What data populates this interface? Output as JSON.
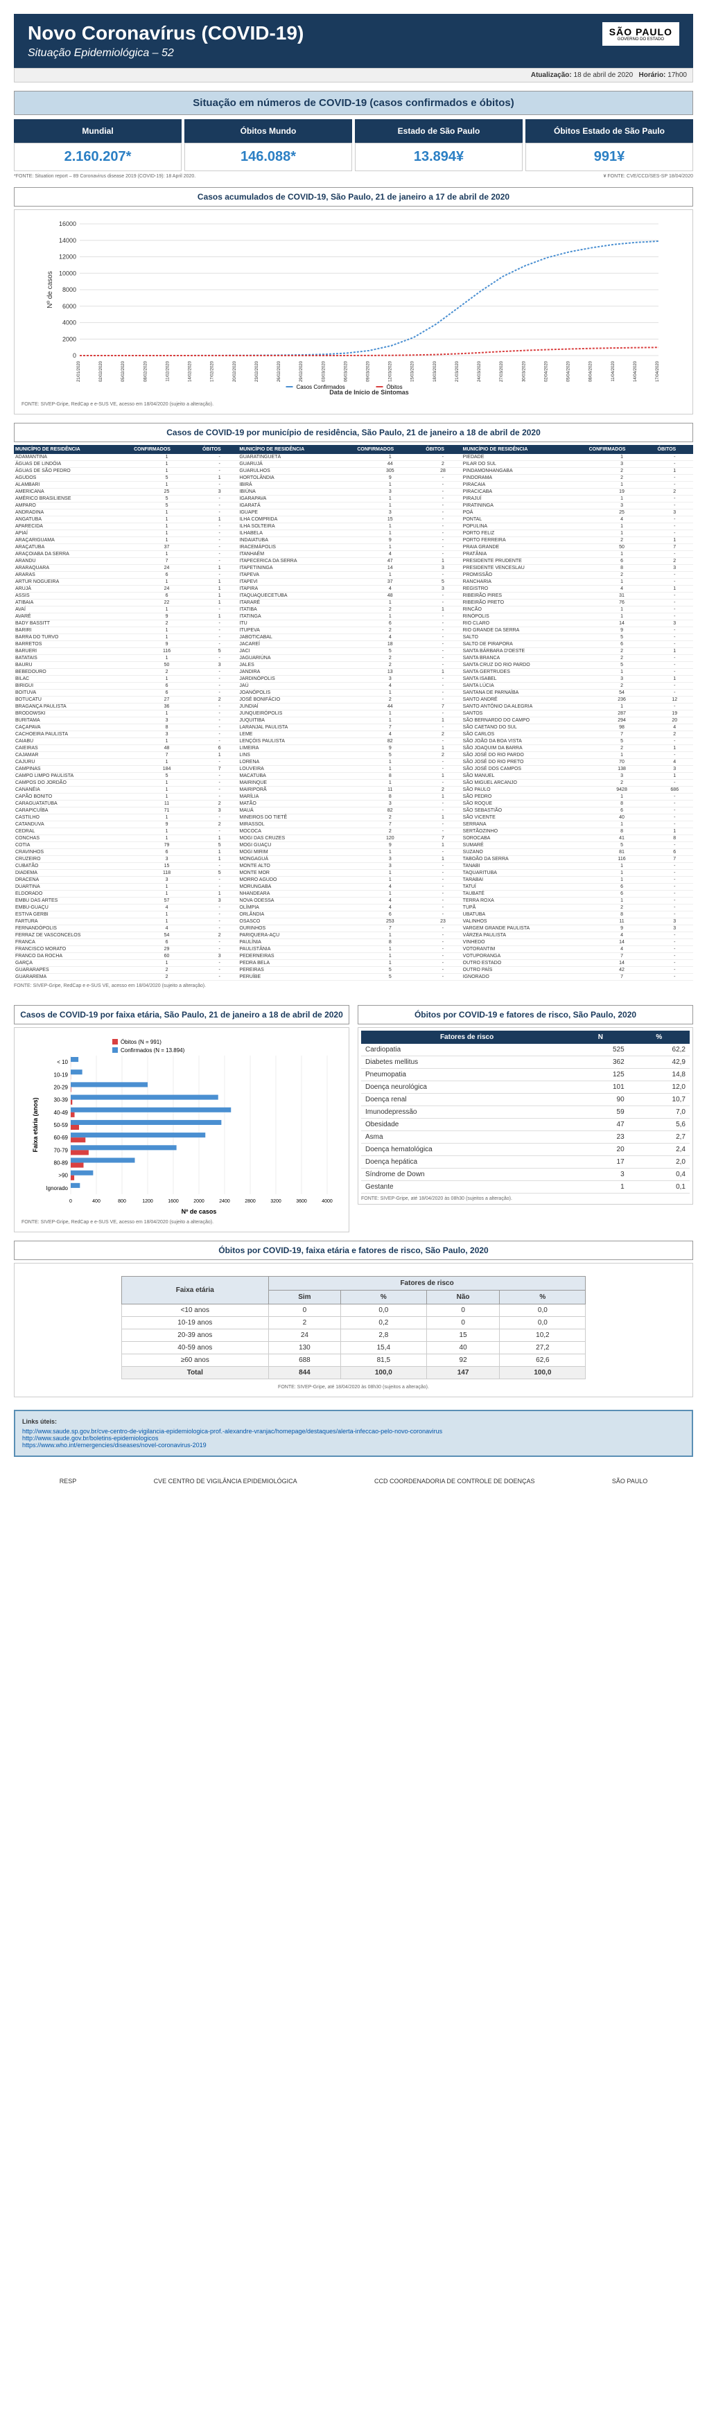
{
  "header": {
    "title": "Novo Coronavírus (COVID-19)",
    "subtitle": "Situação Epidemiológica – 52",
    "sp_label": "SÃO PAULO",
    "sp_sub": "GOVERNO DO ESTADO"
  },
  "update": {
    "label_date": "Atualização:",
    "date": "18 de abril de 2020",
    "label_time": "Horário:",
    "time": "17h00"
  },
  "situation_title": "Situação em números de COVID-19 (casos confirmados e óbitos)",
  "stats": [
    {
      "label": "Mundial",
      "value": "2.160.207*"
    },
    {
      "label": "Óbitos Mundo",
      "value": "146.088*"
    },
    {
      "label": "Estado de São Paulo",
      "value": "13.894¥"
    },
    {
      "label": "Óbitos Estado de São Paulo",
      "value": "991¥"
    }
  ],
  "footnote_left": "*FONTE: Situation report – 89 Coronavirus disease 2019 (COVID-19): 18 April 2020.",
  "footnote_right": "¥ FONTE: CVE/CCD/SES-SP 18/04/2020",
  "chart1": {
    "title": "Casos acumulados de COVID-19, São Paulo, 21 de janeiro a 17 de abril de 2020",
    "y_label": "Nº de casos",
    "x_label": "Data de Início de Sintomas",
    "legend": [
      "Casos Confirmados",
      "Óbitos"
    ],
    "colors": {
      "cases": "#4a8fd1",
      "deaths": "#d94040",
      "grid": "#e0e0e0",
      "axis": "#666"
    },
    "y_max": 16000,
    "y_step": 2000,
    "x_dates": [
      "21/01/2020",
      "02/02/2020",
      "05/02/2020",
      "08/02/2020",
      "11/02/2020",
      "14/02/2020",
      "17/02/2020",
      "20/02/2020",
      "23/02/2020",
      "26/02/2020",
      "29/02/2020",
      "03/03/2020",
      "06/03/2020",
      "09/03/2020",
      "12/03/2020",
      "15/03/2020",
      "18/03/2020",
      "21/03/2020",
      "24/03/2020",
      "27/03/2020",
      "30/03/2020",
      "02/04/2020",
      "05/04/2020",
      "08/04/2020",
      "11/04/2020",
      "14/04/2020",
      "17/04/2020"
    ],
    "cases": [
      0,
      0,
      0,
      0,
      0,
      5,
      10,
      20,
      30,
      50,
      80,
      150,
      300,
      600,
      1200,
      2200,
      3800,
      5800,
      7800,
      9600,
      10900,
      11900,
      12600,
      13100,
      13500,
      13750,
      13894
    ],
    "deaths": [
      0,
      0,
      0,
      0,
      0,
      0,
      0,
      0,
      0,
      0,
      0,
      2,
      5,
      10,
      25,
      60,
      120,
      220,
      350,
      500,
      620,
      720,
      800,
      870,
      920,
      960,
      991
    ],
    "footnote": "FONTE: SIVEP-Gripe, RedCap e e-SUS VE, acesso em 18/04/2020 (sujeito a alteração)."
  },
  "mun_table": {
    "title": "Casos de COVID-19 por município de residência, São Paulo, 21 de janeiro a 18 de abril de 2020",
    "headers": [
      "MUNICÍPIO DE RESIDÊNCIA",
      "CONFIRMADOS",
      "ÓBITOS"
    ],
    "rows": [
      [
        "ADAMANTINA",
        "1",
        "-",
        "GUARATINGUETÁ",
        "1",
        "-",
        "PIEDADE",
        "1",
        "-"
      ],
      [
        "ÁGUAS DE LINDÓIA",
        "1",
        "-",
        "GUARUJÁ",
        "44",
        "2",
        "PILAR DO SUL",
        "3",
        "-"
      ],
      [
        "ÁGUAS DE SÃO PEDRO",
        "1",
        "-",
        "GUARULHOS",
        "305",
        "28",
        "PINDAMONHANGABA",
        "2",
        "1"
      ],
      [
        "AGUDOS",
        "5",
        "1",
        "HORTOLÂNDIA",
        "9",
        "-",
        "PINDORAMA",
        "2",
        "-"
      ],
      [
        "ALAMBARI",
        "1",
        "-",
        "IBIRÁ",
        "1",
        "-",
        "PIRACAIA",
        "1",
        "-"
      ],
      [
        "AMERICANA",
        "25",
        "3",
        "IBIÚNA",
        "3",
        "-",
        "PIRACICABA",
        "19",
        "2"
      ],
      [
        "AMÉRICO BRASILIENSE",
        "5",
        "-",
        "IGARAPAVA",
        "1",
        "-",
        "PIRAJUÍ",
        "1",
        "-"
      ],
      [
        "AMPARO",
        "5",
        "-",
        "IGARATÁ",
        "1",
        "-",
        "PIRATININGA",
        "3",
        "-"
      ],
      [
        "ANDRADINA",
        "1",
        "-",
        "IGUAPE",
        "3",
        "-",
        "POÁ",
        "25",
        "3"
      ],
      [
        "ANGATUBA",
        "1",
        "1",
        "ILHA COMPRIDA",
        "15",
        "-",
        "PONTAL",
        "4",
        "-"
      ],
      [
        "APARECIDA",
        "1",
        "-",
        "ILHA SOLTEIRA",
        "1",
        "-",
        "POPULINA",
        "1",
        "-"
      ],
      [
        "APIAÍ",
        "1",
        "-",
        "ILHABELA",
        "1",
        "-",
        "PORTO FELIZ",
        "1",
        "-"
      ],
      [
        "ARAÇARIGUAMA",
        "1",
        "-",
        "INDAIATUBA",
        "9",
        "-",
        "PORTO FERREIRA",
        "2",
        "1"
      ],
      [
        "ARAÇATUBA",
        "37",
        "-",
        "IRACEMÁPOLIS",
        "1",
        "-",
        "PRAIA GRANDE",
        "50",
        "7"
      ],
      [
        "ARAÇOIABA DA SERRA",
        "1",
        "-",
        "ITANHAÉM",
        "4",
        "-",
        "PRATÂNIA",
        "1",
        "-"
      ],
      [
        "ARANDU",
        "7",
        "-",
        "ITAPECERICA DA SERRA",
        "47",
        "1",
        "PRESIDENTE PRUDENTE",
        "6",
        "2"
      ],
      [
        "ARARAQUARA",
        "24",
        "1",
        "ITAPETININGA",
        "14",
        "3",
        "PRESIDENTE VENCESLAU",
        "8",
        "3"
      ],
      [
        "ARARAS",
        "6",
        "-",
        "ITAPEVA",
        "1",
        "-",
        "PROMISSÃO",
        "2",
        "-"
      ],
      [
        "ARTUR NOGUEIRA",
        "1",
        "1",
        "ITAPEVI",
        "37",
        "5",
        "RANCHARIA",
        "1",
        "-"
      ],
      [
        "ARUJÁ",
        "24",
        "1",
        "ITAPIRA",
        "4",
        "3",
        "REGISTRO",
        "4",
        "1"
      ],
      [
        "ASSIS",
        "6",
        "1",
        "ITAQUAQUECETUBA",
        "48",
        "-",
        "RIBEIRÃO PIRES",
        "31",
        "-"
      ],
      [
        "ATIBAIA",
        "22",
        "1",
        "ITARARÉ",
        "1",
        "-",
        "RIBEIRÃO PRETO",
        "76",
        "-"
      ],
      [
        "AVAÍ",
        "1",
        "-",
        "ITATIBA",
        "2",
        "1",
        "RINCÃO",
        "1",
        "-"
      ],
      [
        "AVARÉ",
        "9",
        "1",
        "ITATINGA",
        "1",
        "-",
        "RINÓPOLIS",
        "1",
        "-"
      ],
      [
        "BADY BASSITT",
        "2",
        "-",
        "ITU",
        "6",
        "-",
        "RIO CLARO",
        "14",
        "3"
      ],
      [
        "BARIRI",
        "1",
        "-",
        "ITUPEVA",
        "2",
        "-",
        "RIO GRANDE DA SERRA",
        "9",
        "-"
      ],
      [
        "BARRA DO TURVO",
        "1",
        "-",
        "JABOTICABAL",
        "4",
        "-",
        "SALTO",
        "5",
        "-"
      ],
      [
        "BARRETOS",
        "9",
        "-",
        "JACAREÍ",
        "18",
        "-",
        "SALTO DE PIRAPORA",
        "6",
        "-"
      ],
      [
        "BARUERI",
        "116",
        "5",
        "JACI",
        "5",
        "-",
        "SANTA BÁRBARA D'OESTE",
        "2",
        "1"
      ],
      [
        "BATATAIS",
        "1",
        "-",
        "JAGUARIÚNA",
        "2",
        "-",
        "SANTA BRANCA",
        "2",
        "-"
      ],
      [
        "BAURU",
        "50",
        "3",
        "JALES",
        "2",
        "-",
        "SANTA CRUZ DO RIO PARDO",
        "5",
        "-"
      ],
      [
        "BEBEDOURO",
        "2",
        "-",
        "JANDIRA",
        "13",
        "1",
        "SANTA GERTRUDES",
        "1",
        "-"
      ],
      [
        "BILAC",
        "1",
        "-",
        "JARDINÓPOLIS",
        "3",
        "-",
        "SANTA ISABEL",
        "3",
        "1"
      ],
      [
        "BIRIGUI",
        "6",
        "-",
        "JAÚ",
        "4",
        "-",
        "SANTA LÚCIA",
        "2",
        "-"
      ],
      [
        "BOITUVA",
        "6",
        "-",
        "JOANÓPOLIS",
        "1",
        "-",
        "SANTANA DE PARNAÍBA",
        "54",
        "-"
      ],
      [
        "BOTUCATU",
        "27",
        "2",
        "JOSÉ BONIFÁCIO",
        "2",
        "-",
        "SANTO ANDRÉ",
        "236",
        "12"
      ],
      [
        "BRAGANÇA PAULISTA",
        "36",
        "-",
        "JUNDIAÍ",
        "44",
        "7",
        "SANTO ANTÔNIO DA ALEGRIA",
        "1",
        "-"
      ],
      [
        "BRODOWSKI",
        "1",
        "-",
        "JUNQUEIRÓPOLIS",
        "1",
        "-",
        "SANTOS",
        "287",
        "19"
      ],
      [
        "BURITAMA",
        "3",
        "-",
        "JUQUITIBA",
        "1",
        "1",
        "SÃO BERNARDO DO CAMPO",
        "294",
        "20"
      ],
      [
        "CAÇAPAVA",
        "8",
        "-",
        "LARANJAL PAULISTA",
        "7",
        "-",
        "SÃO CAETANO DO SUL",
        "98",
        "4"
      ],
      [
        "CACHOEIRA PAULISTA",
        "3",
        "-",
        "LEME",
        "4",
        "2",
        "SÃO CARLOS",
        "7",
        "2"
      ],
      [
        "CAIABU",
        "1",
        "-",
        "LENÇÓIS PAULISTA",
        "82",
        "-",
        "SÃO JOÃO DA BOA VISTA",
        "5",
        "-"
      ],
      [
        "CAIEIRAS",
        "48",
        "6",
        "LIMEIRA",
        "9",
        "1",
        "SÃO JOAQUIM DA BARRA",
        "2",
        "1"
      ],
      [
        "CAJAMAR",
        "7",
        "1",
        "LINS",
        "5",
        "2",
        "SÃO JOSÉ DO RIO PARDO",
        "1",
        "-"
      ],
      [
        "CAJURU",
        "1",
        "-",
        "LORENA",
        "1",
        "-",
        "SÃO JOSÉ DO RIO PRETO",
        "70",
        "4"
      ],
      [
        "CAMPINAS",
        "184",
        "7",
        "LOUVEIRA",
        "1",
        "-",
        "SÃO JOSÉ DOS CAMPOS",
        "138",
        "3"
      ],
      [
        "CAMPO LIMPO PAULISTA",
        "5",
        "-",
        "MACATUBA",
        "8",
        "1",
        "SÃO MANUEL",
        "3",
        "1"
      ],
      [
        "CAMPOS DO JORDÃO",
        "1",
        "-",
        "MAIRINQUE",
        "1",
        "-",
        "SÃO MIGUEL ARCANJO",
        "2",
        "-"
      ],
      [
        "CANANÉIA",
        "1",
        "-",
        "MAIRIPORÃ",
        "11",
        "2",
        "SÃO PAULO",
        "9428",
        "686"
      ],
      [
        "CAPÃO BONITO",
        "1",
        "-",
        "MARÍLIA",
        "8",
        "1",
        "SÃO PEDRO",
        "1",
        "-"
      ],
      [
        "CARAGUATATUBA",
        "11",
        "2",
        "MATÃO",
        "3",
        "-",
        "SÃO ROQUE",
        "8",
        "-"
      ],
      [
        "CARAPICUÍBA",
        "71",
        "3",
        "MAUÁ",
        "82",
        "-",
        "SÃO SEBASTIÃO",
        "6",
        "-"
      ],
      [
        "CASTILHO",
        "1",
        "-",
        "MINEIROS DO TIETÊ",
        "2",
        "1",
        "SÃO VICENTE",
        "40",
        "-"
      ],
      [
        "CATANDUVA",
        "9",
        "2",
        "MIRASSOL",
        "7",
        "-",
        "SERRANA",
        "1",
        "-"
      ],
      [
        "CEDRAL",
        "1",
        "-",
        "MOCOCA",
        "2",
        "-",
        "SERTÃOZINHO",
        "8",
        "1"
      ],
      [
        "CONCHAS",
        "1",
        "1",
        "MOGI DAS CRUZES",
        "120",
        "7",
        "SOROCABA",
        "41",
        "8"
      ],
      [
        "COTIA",
        "79",
        "5",
        "MOGI GUAÇU",
        "9",
        "1",
        "SUMARÉ",
        "5",
        "-"
      ],
      [
        "CRAVINHOS",
        "6",
        "1",
        "MOGI MIRIM",
        "1",
        "-",
        "SUZANO",
        "81",
        "6"
      ],
      [
        "CRUZEIRO",
        "3",
        "1",
        "MONGAGUÁ",
        "3",
        "1",
        "TABOÃO DA SERRA",
        "116",
        "7"
      ],
      [
        "CUBATÃO",
        "15",
        "-",
        "MONTE ALTO",
        "3",
        "-",
        "TANABI",
        "1",
        "-"
      ],
      [
        "DIADEMA",
        "118",
        "5",
        "MONTE MOR",
        "1",
        "-",
        "TAQUARITUBA",
        "1",
        "-"
      ],
      [
        "DRACENA",
        "3",
        "-",
        "MORRO AGUDO",
        "1",
        "-",
        "TARABAI",
        "1",
        "-"
      ],
      [
        "DUARTINA",
        "1",
        "-",
        "MORUNGABA",
        "4",
        "-",
        "TATUÍ",
        "6",
        "-"
      ],
      [
        "ELDORADO",
        "1",
        "1",
        "NHANDEARA",
        "1",
        "-",
        "TAUBATÉ",
        "6",
        "-"
      ],
      [
        "EMBU DAS ARTES",
        "57",
        "3",
        "NOVA ODESSA",
        "4",
        "-",
        "TERRA ROXA",
        "1",
        "-"
      ],
      [
        "EMBU-GUAÇU",
        "4",
        "-",
        "OLÍMPIA",
        "4",
        "-",
        "TUPÃ",
        "2",
        "-"
      ],
      [
        "ESTIVA GERBI",
        "1",
        "-",
        "ORLÂNDIA",
        "6",
        "-",
        "UBATUBA",
        "8",
        "-"
      ],
      [
        "FARTURA",
        "1",
        "-",
        "OSASCO",
        "253",
        "23",
        "VALINHOS",
        "11",
        "3"
      ],
      [
        "FERNANDÓPOLIS",
        "4",
        "-",
        "OURINHOS",
        "7",
        "-",
        "VARGEM GRANDE PAULISTA",
        "9",
        "3"
      ],
      [
        "FERRAZ DE VASCONCELOS",
        "54",
        "2",
        "PARIQUERA-AÇU",
        "1",
        "-",
        "VÁRZEA PAULISTA",
        "4",
        "-"
      ],
      [
        "FRANCA",
        "6",
        "-",
        "PAULÍNIA",
        "8",
        "-",
        "VINHEDO",
        "14",
        "-"
      ],
      [
        "FRANCISCO MORATO",
        "29",
        "-",
        "PAULISTÂNIA",
        "1",
        "-",
        "VOTORANTIM",
        "4",
        "-"
      ],
      [
        "FRANCO DA ROCHA",
        "60",
        "3",
        "PEDERNEIRAS",
        "1",
        "-",
        "VOTUPORANGA",
        "7",
        "-"
      ],
      [
        "GARÇA",
        "1",
        "-",
        "PEDRA BELA",
        "1",
        "-",
        "OUTRO ESTADO",
        "14",
        "-"
      ],
      [
        "GUARARAPES",
        "2",
        "-",
        "PEREIRAS",
        "5",
        "-",
        "OUTRO PAÍS",
        "42",
        "-"
      ],
      [
        "GUARAREMA",
        "2",
        "-",
        "PERUÍBE",
        "5",
        "-",
        "IGNORADO",
        "7",
        "-"
      ]
    ],
    "footnote": "FONTE: SIVEP-Gripe, RedCap e e-SUS VE, acesso em 18/04/2020 (sujeito a alteração)."
  },
  "age_chart": {
    "title": "Casos de COVID-19 por faixa etária, São Paulo, 21 de janeiro a 18 de abril de 2020",
    "y_label": "Faixa etária (anos)",
    "x_label": "Nº de casos",
    "legend_deaths": "Óbitos (N = 991)",
    "legend_cases": "Confirmados (N = 13.894)",
    "colors": {
      "cases": "#4a8fd1",
      "deaths": "#d94040"
    },
    "groups": [
      "< 10",
      "10-19",
      "20-29",
      "30-39",
      "40-49",
      "50-59",
      "60-69",
      "70-79",
      "80-89",
      ">90",
      "Ignorado"
    ],
    "cases": [
      120,
      180,
      1200,
      2300,
      2500,
      2350,
      2100,
      1650,
      1000,
      350,
      144
    ],
    "deaths": [
      1,
      2,
      8,
      25,
      60,
      130,
      230,
      280,
      200,
      55,
      0
    ],
    "x_max": 4000,
    "x_step": 400,
    "footnote": "FONTE: SIVEP-Gripe, RedCap e e-SUS VE, acesso em 18/04/2020 (sujeito a alteração)."
  },
  "risk_table": {
    "title": "Óbitos por COVID-19 e fatores de risco, São Paulo, 2020",
    "headers": [
      "Fatores de risco",
      "N",
      "%"
    ],
    "rows": [
      [
        "Cardiopatia",
        "525",
        "62,2"
      ],
      [
        "Diabetes mellitus",
        "362",
        "42,9"
      ],
      [
        "Pneumopatia",
        "125",
        "14,8"
      ],
      [
        "Doença neurológica",
        "101",
        "12,0"
      ],
      [
        "Doença renal",
        "90",
        "10,7"
      ],
      [
        "Imunodepressão",
        "59",
        "7,0"
      ],
      [
        "Obesidade",
        "47",
        "5,6"
      ],
      [
        "Asma",
        "23",
        "2,7"
      ],
      [
        "Doença hematológica",
        "20",
        "2,4"
      ],
      [
        "Doença hepática",
        "17",
        "2,0"
      ],
      [
        "Síndrome de Down",
        "3",
        "0,4"
      ],
      [
        "Gestante",
        "1",
        "0,1"
      ]
    ],
    "footnote": "FONTE: SIVEP-Gripe, até 18/04/2020 às 08h30 (sujeitos a alteração)."
  },
  "age_risk": {
    "title": "Óbitos por COVID-19, faixa etária e fatores de risco, São Paulo, 2020",
    "rows": [
      [
        "<10 anos",
        "0",
        "0,0",
        "0",
        "0,0"
      ],
      [
        "10-19 anos",
        "2",
        "0,2",
        "0",
        "0,0"
      ],
      [
        "20-39 anos",
        "24",
        "2,8",
        "15",
        "10,2"
      ],
      [
        "40-59 anos",
        "130",
        "15,4",
        "40",
        "27,2"
      ],
      [
        "≥60 anos",
        "688",
        "81,5",
        "92",
        "62,6"
      ]
    ],
    "total": [
      "Total",
      "844",
      "100,0",
      "147",
      "100,0"
    ],
    "headers": {
      "main": "Faixa etária",
      "fr": "Fatores de risco",
      "sim": "Sim",
      "pct": "%",
      "nao": "Não"
    },
    "footnote": "FONTE: SIVEP-Gripe, até 18/04/2020 às 08h30 (sujeitos a alteração)."
  },
  "links": {
    "title": "Links úteis:",
    "items": [
      "http://www.saude.sp.gov.br/cve-centro-de-vigilancia-epidemiologica-prof.-alexandre-vranjac/homepage/destaques/alerta-infeccao-pelo-novo-coronavirus",
      "http://www.saude.gov.br/boletins-epidemiologicos",
      "https://www.who.int/emergencies/diseases/novel-coronavirus-2019"
    ]
  },
  "logos": [
    "RESP",
    "CVE CENTRO DE VIGILÂNCIA EPIDEMIOLÓGICA",
    "CCD COORDENADORIA DE CONTROLE DE DOENÇAS",
    "SÃO PAULO"
  ]
}
